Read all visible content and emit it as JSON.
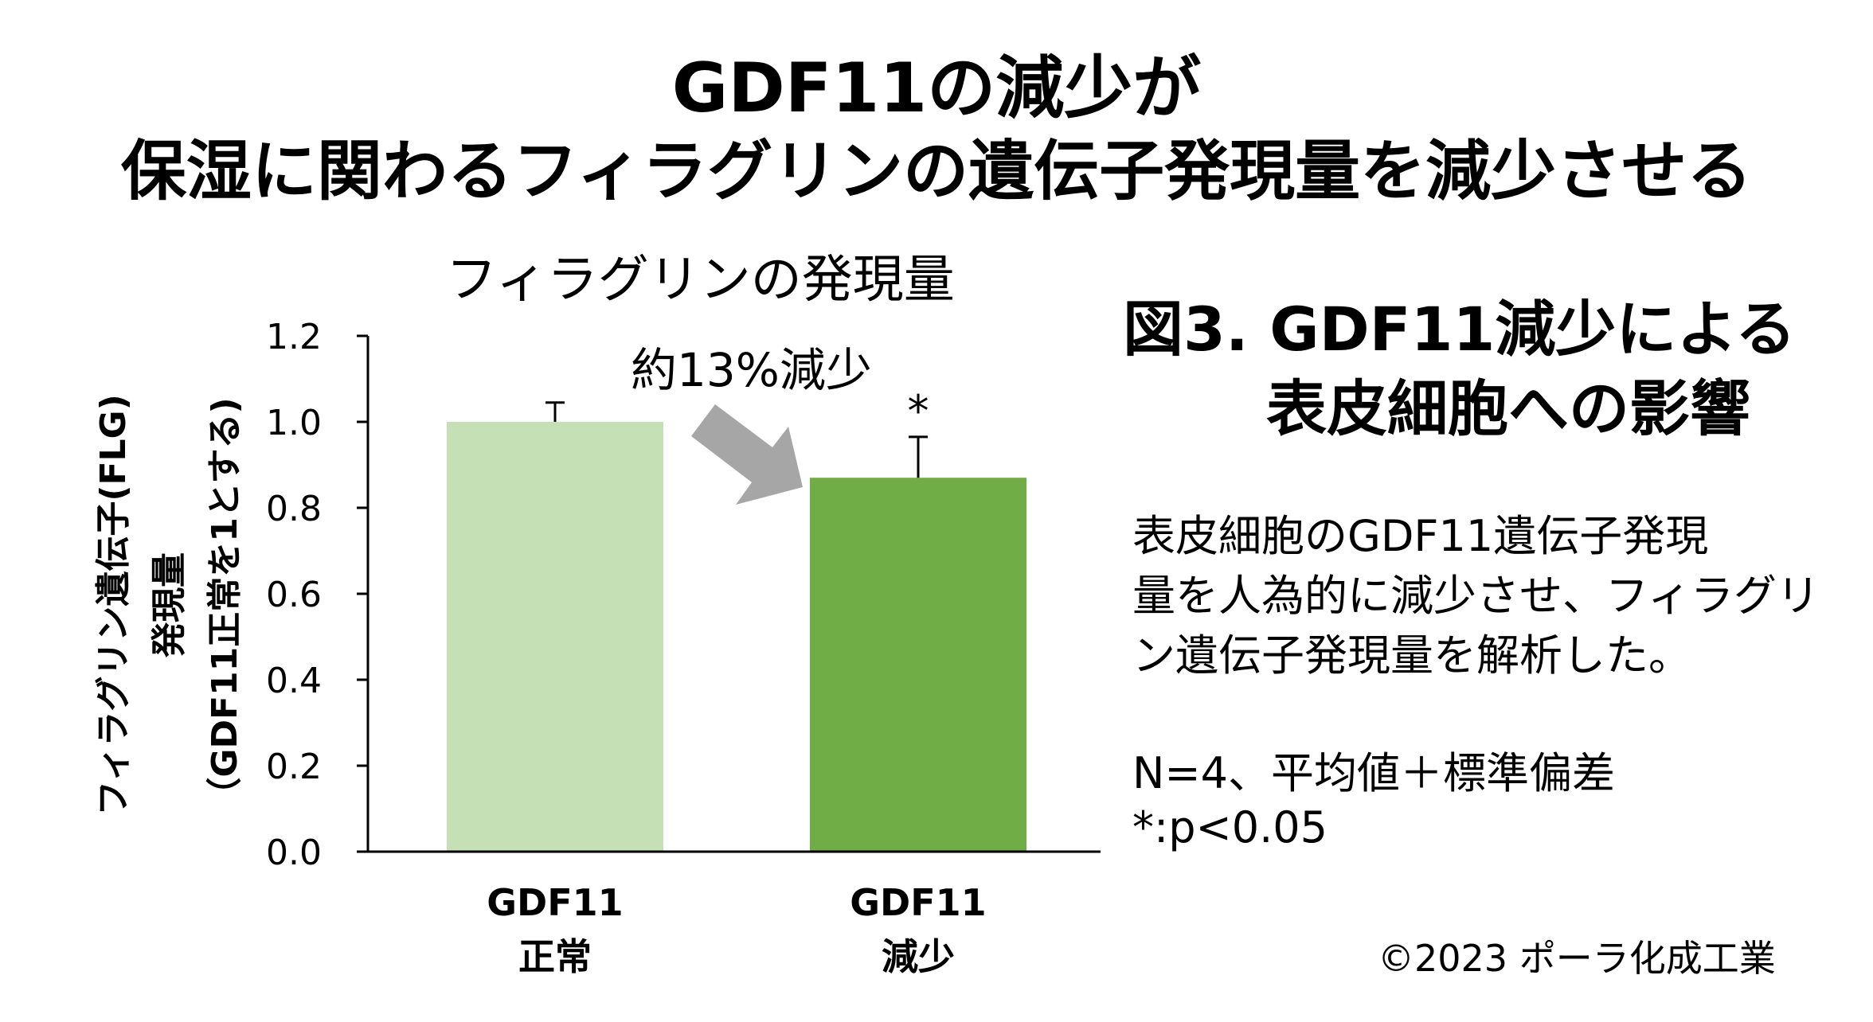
{
  "title": {
    "line1": "GDF11の減少が",
    "line2": "保湿に関わるフィラグリンの遺伝子発現量を減少させる"
  },
  "figure_title": {
    "line1": "図3. GDF11減少による",
    "line2": "表皮細胞への影響"
  },
  "description": [
    "表皮細胞のGDF11遺伝子発現",
    "量を人為的に減少させ、フィラグリ",
    "ン遺伝子発現量を解析した。"
  ],
  "stats": [
    "N=4、平均値＋標準偏差",
    "*:p<0.05"
  ],
  "copyright": "©2023 ポーラ化成工業",
  "annotation": "約13%減少",
  "colors": {
    "bar_normal": "#c5e0b4",
    "bar_reduced": "#70ad47",
    "arrow": "#a6a6a6",
    "axis": "#000000"
  },
  "chart_data": {
    "type": "bar",
    "title": "フィラグリンの発現量",
    "ylabel_lines": [
      "フィラグリン遺伝子(FLG)",
      "発現量",
      "（GDF11正常を1とする)"
    ],
    "ylim": [
      0,
      1.2
    ],
    "yticks": [
      "0.0",
      "0.2",
      "0.4",
      "0.6",
      "0.8",
      "1.0",
      "1.2"
    ],
    "categories": [
      {
        "line1": "GDF11",
        "line2": "正常"
      },
      {
        "line1": "GDF11",
        "line2": "減少"
      }
    ],
    "values": [
      1.0,
      0.87
    ],
    "errors": [
      0.045,
      0.095
    ],
    "significance": [
      "",
      "*"
    ]
  }
}
